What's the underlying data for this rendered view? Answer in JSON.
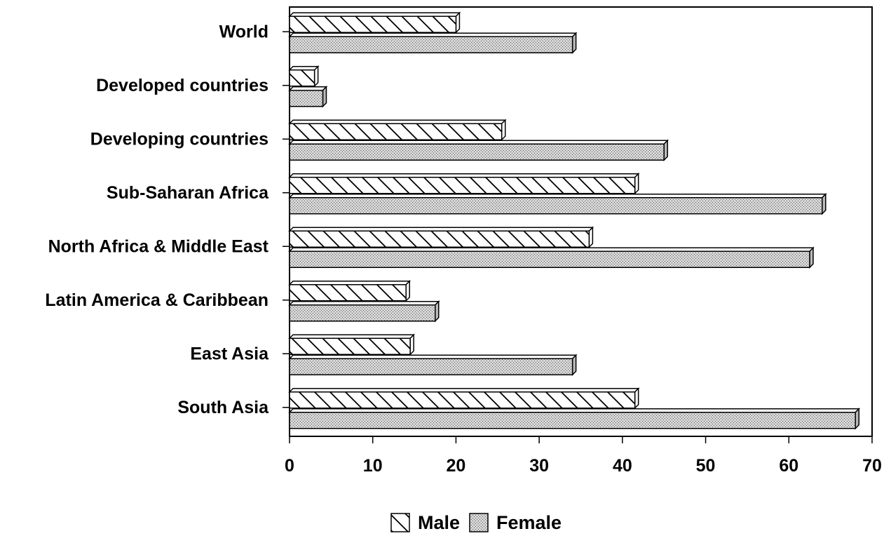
{
  "chart_data": {
    "type": "bar",
    "orientation": "horizontal",
    "categories": [
      "World",
      "Developed countries",
      "Developing countries",
      "Sub-Saharan Africa",
      "North Africa & Middle East",
      "Latin America & Caribbean",
      "East Asia",
      "South Asia"
    ],
    "series": [
      {
        "name": "Male",
        "values": [
          20,
          3,
          25.5,
          41.5,
          36,
          14,
          14.5,
          41.5
        ],
        "pattern": "diagonal-hatch"
      },
      {
        "name": "Female",
        "values": [
          34,
          4,
          45,
          64,
          62.5,
          17.5,
          34,
          68
        ],
        "pattern": "stipple"
      }
    ],
    "xlim": [
      0,
      70
    ],
    "xticks": [
      "0",
      "10",
      "20",
      "30",
      "40",
      "50",
      "60",
      "70"
    ],
    "title": "",
    "xlabel": "",
    "ylabel": "",
    "legend_position": "bottom-center",
    "grid": false,
    "bar_style": "3d"
  }
}
